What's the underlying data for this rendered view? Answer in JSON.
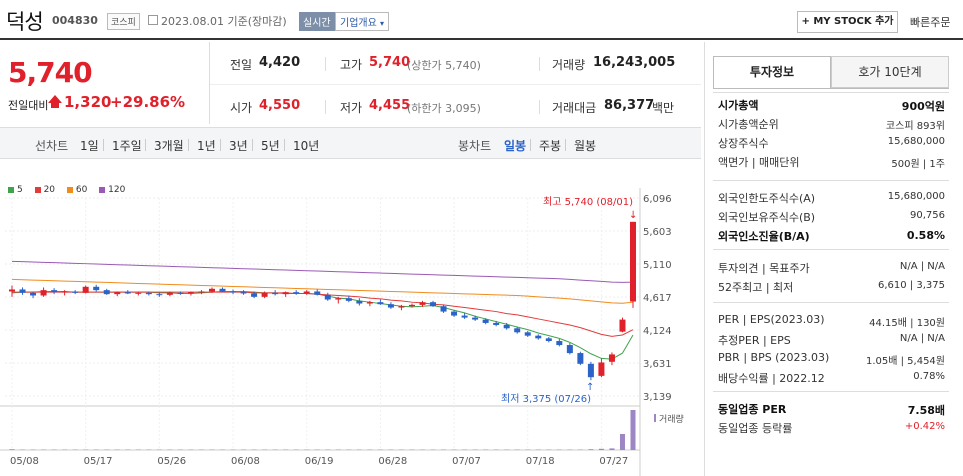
{
  "header": {
    "name": "덕성",
    "code": "004830",
    "market": "코스피",
    "date": "2023.08.01 기준(장마감)",
    "live": "실시간",
    "company_info": "기업개요",
    "my_stock": "+ MY STOCK 추가",
    "quick_order": "빠른주문"
  },
  "price": {
    "current": "5,740",
    "change_label": "전일대비",
    "change": "1,320",
    "change_pct": "+29.86%"
  },
  "quotes": {
    "prev_label": "전일",
    "prev": "4,420",
    "high_label": "고가",
    "high": "5,740",
    "upper_limit": "(상한가 5,740)",
    "volume_label": "거래량",
    "volume": "16,243,005",
    "open_label": "시가",
    "open": "4,550",
    "low_label": "저가",
    "low": "4,455",
    "lower_limit": "(하한가 3,095)",
    "amount_label": "거래대금",
    "amount": "86,377",
    "amount_unit": "백만"
  },
  "periods": {
    "label": "선차트",
    "items": [
      "1일",
      "1주일",
      "3개월",
      "1년",
      "3년",
      "5년",
      "10년"
    ],
    "candle_label": "봉차트",
    "candle_items": [
      "일봉",
      "주봉",
      "월봉"
    ],
    "candle_active": "일봉"
  },
  "legend": [
    {
      "name": "5",
      "color": "#3fa34d"
    },
    {
      "name": "20",
      "color": "#e23b3b"
    },
    {
      "name": "60",
      "color": "#f08c1e"
    },
    {
      "name": "120",
      "color": "#9b59b6"
    }
  ],
  "chart_data": {
    "type": "candlestick",
    "y_ticks": [
      "6,096",
      "5,603",
      "5,110",
      "4,617",
      "4,124",
      "3,631",
      "3,139"
    ],
    "ylim": [
      3139,
      6096
    ],
    "x_ticks": [
      "05/08",
      "05/17",
      "05/26",
      "06/08",
      "06/19",
      "06/28",
      "07/07",
      "07/18",
      "07/27"
    ],
    "high_note": "최고 5,740 (08/01)",
    "low_note": "최저 3,375 (07/26)",
    "volume_label": "거래량",
    "up_color": "#e0202a",
    "down_color": "#2b63c8",
    "candles": [
      [
        4700,
        4790,
        4620,
        4730
      ],
      [
        4730,
        4760,
        4650,
        4680
      ],
      [
        4680,
        4700,
        4600,
        4640
      ],
      [
        4640,
        4760,
        4620,
        4720
      ],
      [
        4720,
        4750,
        4660,
        4690
      ],
      [
        4690,
        4720,
        4640,
        4700
      ],
      [
        4700,
        4720,
        4660,
        4680
      ],
      [
        4680,
        4790,
        4670,
        4770
      ],
      [
        4770,
        4800,
        4700,
        4720
      ],
      [
        4720,
        4740,
        4650,
        4660
      ],
      [
        4660,
        4700,
        4630,
        4690
      ],
      [
        4690,
        4720,
        4660,
        4670
      ],
      [
        4670,
        4700,
        4640,
        4680
      ],
      [
        4680,
        4700,
        4640,
        4660
      ],
      [
        4660,
        4680,
        4620,
        4650
      ],
      [
        4650,
        4700,
        4630,
        4680
      ],
      [
        4680,
        4700,
        4650,
        4670
      ],
      [
        4670,
        4700,
        4640,
        4690
      ],
      [
        4690,
        4720,
        4660,
        4700
      ],
      [
        4700,
        4760,
        4680,
        4740
      ],
      [
        4740,
        4760,
        4690,
        4700
      ],
      [
        4700,
        4730,
        4660,
        4690
      ],
      [
        4690,
        4720,
        4650,
        4670
      ],
      [
        4670,
        4700,
        4600,
        4620
      ],
      [
        4620,
        4700,
        4600,
        4680
      ],
      [
        4680,
        4720,
        4640,
        4660
      ],
      [
        4660,
        4700,
        4620,
        4690
      ],
      [
        4690,
        4720,
        4650,
        4670
      ],
      [
        4670,
        4720,
        4650,
        4700
      ],
      [
        4700,
        4730,
        4640,
        4650
      ],
      [
        4650,
        4680,
        4560,
        4580
      ],
      [
        4580,
        4620,
        4520,
        4600
      ],
      [
        4600,
        4640,
        4540,
        4560
      ],
      [
        4560,
        4600,
        4490,
        4520
      ],
      [
        4520,
        4560,
        4480,
        4540
      ],
      [
        4540,
        4580,
        4500,
        4510
      ],
      [
        4510,
        4540,
        4440,
        4460
      ],
      [
        4460,
        4500,
        4420,
        4480
      ],
      [
        4480,
        4520,
        4460,
        4500
      ],
      [
        4500,
        4560,
        4470,
        4540
      ],
      [
        4540,
        4560,
        4470,
        4480
      ],
      [
        4480,
        4500,
        4380,
        4400
      ],
      [
        4400,
        4420,
        4320,
        4340
      ],
      [
        4340,
        4380,
        4290,
        4310
      ],
      [
        4310,
        4340,
        4260,
        4280
      ],
      [
        4280,
        4300,
        4210,
        4230
      ],
      [
        4230,
        4260,
        4180,
        4200
      ],
      [
        4200,
        4230,
        4130,
        4150
      ],
      [
        4150,
        4170,
        4070,
        4090
      ],
      [
        4090,
        4110,
        4020,
        4040
      ],
      [
        4040,
        4060,
        3980,
        4000
      ],
      [
        4000,
        4020,
        3940,
        3960
      ],
      [
        3960,
        3990,
        3880,
        3900
      ],
      [
        3900,
        3930,
        3760,
        3780
      ],
      [
        3780,
        3800,
        3600,
        3620
      ],
      [
        3620,
        3650,
        3375,
        3420
      ],
      [
        3440,
        3700,
        3420,
        3640
      ],
      [
        3650,
        3790,
        3600,
        3760
      ],
      [
        4100,
        4310,
        4090,
        4280
      ],
      [
        4550,
        5740,
        4455,
        5740
      ]
    ],
    "volume": [
      2,
      1,
      1,
      1,
      1,
      1,
      1,
      1,
      1,
      1,
      1,
      1,
      1,
      1,
      1,
      1,
      1,
      1,
      1,
      1,
      1,
      1,
      1,
      1,
      1,
      1,
      1,
      1,
      1,
      1,
      1,
      1,
      1,
      1,
      1,
      1,
      1,
      1,
      1,
      1,
      1,
      1,
      1,
      1,
      1,
      1,
      1,
      1,
      1,
      1,
      1,
      1,
      1,
      1,
      1,
      2,
      3,
      4,
      40,
      100
    ],
    "ma": {
      "5": [
        4680,
        4690,
        4690,
        4700,
        4700,
        4700,
        4690,
        4690,
        4690,
        4690,
        4690,
        4690,
        4690,
        4690,
        4680,
        4680,
        4670,
        4670,
        4680,
        4690,
        4700,
        4700,
        4700,
        4690,
        4680,
        4680,
        4670,
        4670,
        4670,
        4660,
        4630,
        4600,
        4590,
        4560,
        4540,
        4520,
        4500,
        4480,
        4470,
        4480,
        4490,
        4460,
        4420,
        4380,
        4330,
        4290,
        4250,
        4210,
        4170,
        4130,
        4080,
        4040,
        4000,
        3940,
        3860,
        3770,
        3700,
        3690,
        3780,
        4050
      ],
      "20": [
        4690,
        4690,
        4690,
        4690,
        4690,
        4690,
        4690,
        4690,
        4690,
        4690,
        4690,
        4690,
        4690,
        4690,
        4690,
        4690,
        4690,
        4690,
        4690,
        4690,
        4690,
        4690,
        4690,
        4680,
        4680,
        4680,
        4680,
        4670,
        4670,
        4660,
        4650,
        4640,
        4630,
        4620,
        4600,
        4590,
        4570,
        4560,
        4540,
        4530,
        4510,
        4500,
        4480,
        4460,
        4440,
        4420,
        4400,
        4370,
        4350,
        4320,
        4290,
        4260,
        4230,
        4200,
        4160,
        4110,
        4060,
        4030,
        4050,
        4130
      ],
      "60": [
        4880,
        4875,
        4870,
        4865,
        4860,
        4855,
        4850,
        4845,
        4840,
        4835,
        4830,
        4825,
        4820,
        4815,
        4810,
        4805,
        4800,
        4795,
        4790,
        4785,
        4780,
        4775,
        4770,
        4765,
        4760,
        4755,
        4750,
        4745,
        4740,
        4735,
        4730,
        4725,
        4720,
        4715,
        4710,
        4705,
        4700,
        4695,
        4690,
        4685,
        4680,
        4675,
        4670,
        4665,
        4660,
        4655,
        4650,
        4645,
        4640,
        4630,
        4620,
        4610,
        4600,
        4590,
        4575,
        4560,
        4545,
        4530,
        4525,
        4540
      ],
      "120": [
        5150,
        5145,
        5140,
        5135,
        5130,
        5125,
        5120,
        5115,
        5110,
        5105,
        5100,
        5095,
        5090,
        5085,
        5080,
        5075,
        5070,
        5065,
        5060,
        5055,
        5050,
        5045,
        5040,
        5035,
        5030,
        5025,
        5020,
        5015,
        5010,
        5005,
        5000,
        4995,
        4990,
        4985,
        4980,
        4975,
        4970,
        4965,
        4960,
        4955,
        4950,
        4945,
        4940,
        4935,
        4930,
        4925,
        4920,
        4915,
        4910,
        4905,
        4900,
        4895,
        4890,
        4880,
        4870,
        4860,
        4850,
        4840,
        4835,
        4840
      ]
    }
  },
  "side": {
    "tab_active": "투자정보",
    "tab_other": "호가 10단계",
    "rows1": [
      {
        "label": "시가총액",
        "value": "900억원",
        "bold": true
      },
      {
        "label": "시가총액순위",
        "value": "코스피 893위"
      },
      {
        "label": "상장주식수",
        "value": "15,680,000"
      },
      {
        "label": "액면가 | 매매단위",
        "value": "500원 | 1주"
      }
    ],
    "rows2": [
      {
        "label": "외국인한도주식수(A)",
        "value": "15,680,000"
      },
      {
        "label": "외국인보유주식수(B)",
        "value": "90,756"
      },
      {
        "label": "외국인소진율(B/A)",
        "value": "0.58%",
        "bold": true
      }
    ],
    "rows3": [
      {
        "label": "투자의견 | 목표주가",
        "value": "N/A | N/A"
      },
      {
        "label": "52주최고 | 최저",
        "value": "6,610 | 3,375"
      }
    ],
    "rows4": [
      {
        "label": "PER | EPS(2023.03)",
        "value": "44.15배 | 130원"
      },
      {
        "label": "추정PER | EPS",
        "value": "N/A | N/A"
      },
      {
        "label": "PBR | BPS (2023.03)",
        "value": "1.05배 | 5,454원"
      },
      {
        "label": "배당수익률 | 2022.12",
        "value": "0.78%"
      }
    ],
    "rows5": [
      {
        "label": "동일업종 PER",
        "value": "7.58배",
        "bold": true
      },
      {
        "label": "동일업종 등락률",
        "value": "+0.42%",
        "red": true
      }
    ]
  }
}
